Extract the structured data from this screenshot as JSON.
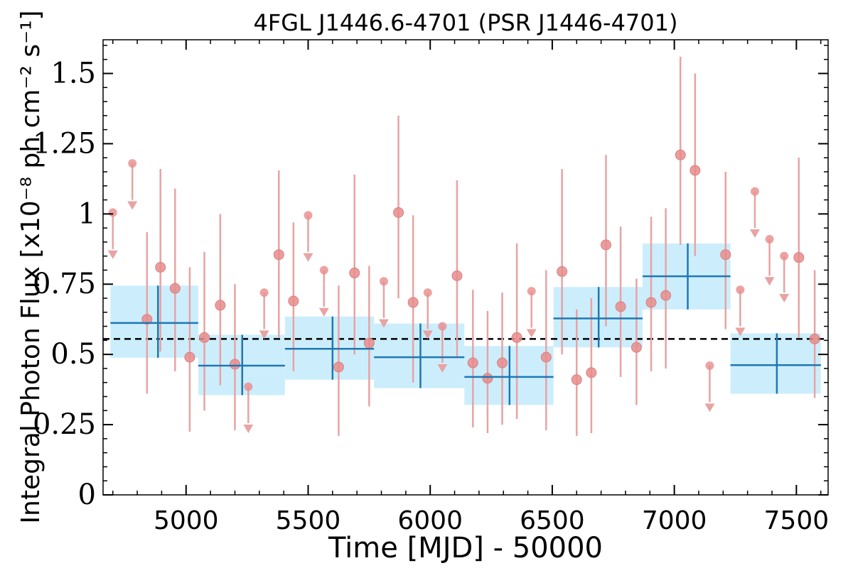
{
  "chart_data": {
    "type": "scatter",
    "title": "4FGL J1446.6-4701 (PSR J1446-4701)",
    "xlabel": "Time [MJD] - 50000",
    "ylabel": "Integral Photon Flux [x10⁻⁸ ph cm⁻² s⁻¹]",
    "xlim": [
      4660,
      7630
    ],
    "ylim": [
      0,
      1.62
    ],
    "xticks": [
      5000,
      5500,
      6000,
      6500,
      7000,
      7500
    ],
    "xtick_labels": [
      "5000",
      "5500",
      "6000",
      "6500",
      "7000",
      "7500"
    ],
    "yticks": [
      0,
      0.25,
      0.5,
      0.75,
      1,
      1.25,
      1.5
    ],
    "ytick_labels": [
      "0",
      "0.25",
      "0.5",
      "0.75",
      "1",
      "1.25",
      "1.5"
    ],
    "grid": false,
    "mean_flux": 0.555,
    "colors": {
      "points": "#e88c8c",
      "errorbars": "#e8a3a3",
      "bins": "#1f77b4",
      "band": "#cceefc",
      "mean": "#000000"
    },
    "short_bins": [
      {
        "x": 4700,
        "y": 1.005,
        "upper_limit": true
      },
      {
        "x": 4780,
        "y": 1.18,
        "upper_limit": true
      },
      {
        "x": 4840,
        "y": 0.625,
        "ylo": 0.36,
        "yhi": 0.935
      },
      {
        "x": 4895,
        "y": 0.81,
        "ylo": 0.51,
        "yhi": 1.16
      },
      {
        "x": 4955,
        "y": 0.735,
        "ylo": 0.44,
        "yhi": 1.09
      },
      {
        "x": 5015,
        "y": 0.49,
        "ylo": 0.225,
        "yhi": 0.81
      },
      {
        "x": 5075,
        "y": 0.56,
        "ylo": 0.3,
        "yhi": 0.865
      },
      {
        "x": 5140,
        "y": 0.675,
        "ylo": 0.39,
        "yhi": 1.0
      },
      {
        "x": 5200,
        "y": 0.465,
        "ylo": 0.23,
        "yhi": 0.75
      },
      {
        "x": 5255,
        "y": 0.385,
        "upper_limit": true
      },
      {
        "x": 5320,
        "y": 0.72,
        "upper_limit": true
      },
      {
        "x": 5380,
        "y": 0.855,
        "ylo": 0.56,
        "yhi": 1.155
      },
      {
        "x": 5440,
        "y": 0.69,
        "ylo": 0.44,
        "yhi": 0.97
      },
      {
        "x": 5500,
        "y": 0.995,
        "upper_limit": true
      },
      {
        "x": 5565,
        "y": 0.8,
        "upper_limit": true
      },
      {
        "x": 5625,
        "y": 0.455,
        "ylo": 0.21,
        "yhi": 0.745
      },
      {
        "x": 5690,
        "y": 0.79,
        "ylo": 0.5,
        "yhi": 1.14
      },
      {
        "x": 5750,
        "y": 0.54,
        "ylo": 0.315,
        "yhi": 0.815
      },
      {
        "x": 5810,
        "y": 0.76,
        "upper_limit": true
      },
      {
        "x": 5870,
        "y": 1.005,
        "ylo": 0.7,
        "yhi": 1.35
      },
      {
        "x": 5930,
        "y": 0.685,
        "ylo": 0.4,
        "yhi": 0.995
      },
      {
        "x": 5990,
        "y": 0.72,
        "upper_limit": true
      },
      {
        "x": 6050,
        "y": 0.6,
        "upper_limit": true
      },
      {
        "x": 6110,
        "y": 0.78,
        "ylo": 0.49,
        "yhi": 1.12
      },
      {
        "x": 6175,
        "y": 0.47,
        "ylo": 0.24,
        "yhi": 0.73
      },
      {
        "x": 6235,
        "y": 0.415,
        "ylo": 0.22,
        "yhi": 0.655
      },
      {
        "x": 6295,
        "y": 0.47,
        "ylo": 0.25,
        "yhi": 0.72
      },
      {
        "x": 6355,
        "y": 0.56,
        "ylo": 0.27,
        "yhi": 0.895
      },
      {
        "x": 6415,
        "y": 0.725,
        "upper_limit": true
      },
      {
        "x": 6475,
        "y": 0.49,
        "ylo": 0.23,
        "yhi": 0.8
      },
      {
        "x": 6540,
        "y": 0.795,
        "ylo": 0.5,
        "yhi": 1.16
      },
      {
        "x": 6600,
        "y": 0.41,
        "ylo": 0.21,
        "yhi": 0.66
      },
      {
        "x": 6660,
        "y": 0.435,
        "ylo": 0.22,
        "yhi": 0.7
      },
      {
        "x": 6720,
        "y": 0.89,
        "ylo": 0.6,
        "yhi": 1.21
      },
      {
        "x": 6780,
        "y": 0.67,
        "ylo": 0.42,
        "yhi": 0.955
      },
      {
        "x": 6845,
        "y": 0.525,
        "ylo": 0.32,
        "yhi": 0.77
      },
      {
        "x": 6905,
        "y": 0.685,
        "ylo": 0.44,
        "yhi": 0.99
      },
      {
        "x": 6965,
        "y": 0.71,
        "ylo": 0.45,
        "yhi": 1.02
      },
      {
        "x": 7025,
        "y": 1.21,
        "ylo": 0.89,
        "yhi": 1.56
      },
      {
        "x": 7085,
        "y": 1.155,
        "ylo": 0.85,
        "yhi": 1.5
      },
      {
        "x": 7145,
        "y": 0.46,
        "upper_limit": true
      },
      {
        "x": 7210,
        "y": 0.855,
        "ylo": 0.59,
        "yhi": 1.15
      },
      {
        "x": 7270,
        "y": 0.73,
        "upper_limit": true
      },
      {
        "x": 7330,
        "y": 1.08,
        "upper_limit": true
      },
      {
        "x": 7390,
        "y": 0.91,
        "upper_limit": true
      },
      {
        "x": 7450,
        "y": 0.85,
        "upper_limit": true
      },
      {
        "x": 7510,
        "y": 0.845,
        "ylo": 0.56,
        "yhi": 1.2
      },
      {
        "x": 7575,
        "y": 0.555,
        "ylo": 0.345,
        "yhi": 0.8
      }
    ],
    "long_bins": [
      {
        "x0": 4690,
        "x1": 5050,
        "xc": 4885,
        "y": 0.612,
        "ylo": 0.488,
        "yhi": 0.745
      },
      {
        "x0": 5050,
        "x1": 5405,
        "xc": 5230,
        "y": 0.46,
        "ylo": 0.355,
        "yhi": 0.57
      },
      {
        "x0": 5405,
        "x1": 5770,
        "xc": 5600,
        "y": 0.52,
        "ylo": 0.41,
        "yhi": 0.635
      },
      {
        "x0": 5770,
        "x1": 6140,
        "xc": 5960,
        "y": 0.49,
        "ylo": 0.38,
        "yhi": 0.61
      },
      {
        "x0": 6140,
        "x1": 6505,
        "xc": 6325,
        "y": 0.42,
        "ylo": 0.32,
        "yhi": 0.53
      },
      {
        "x0": 6505,
        "x1": 6870,
        "xc": 6690,
        "y": 0.628,
        "ylo": 0.525,
        "yhi": 0.74
      },
      {
        "x0": 6870,
        "x1": 7230,
        "xc": 7055,
        "y": 0.778,
        "ylo": 0.66,
        "yhi": 0.895
      },
      {
        "x0": 7230,
        "x1": 7600,
        "xc": 7420,
        "y": 0.462,
        "ylo": 0.36,
        "yhi": 0.575
      }
    ]
  }
}
